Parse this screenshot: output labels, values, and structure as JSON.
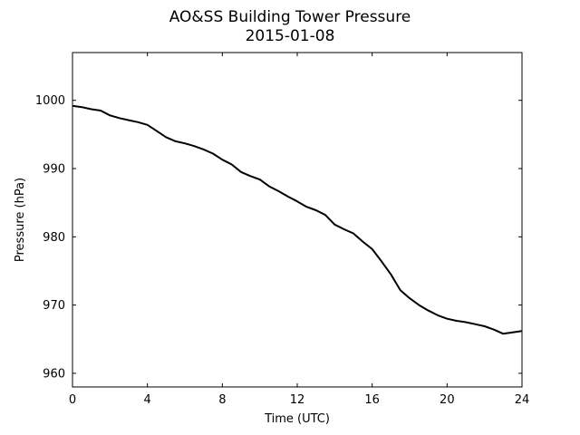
{
  "chart_data": {
    "type": "line",
    "title": "AO&SS Building Tower Pressure",
    "subtitle": "2015-01-08",
    "xlabel": "Time (UTC)",
    "ylabel": "Pressure (hPa)",
    "xlim": [
      0,
      24
    ],
    "ylim": [
      958,
      1007
    ],
    "xticks": [
      0,
      4,
      8,
      12,
      16,
      20,
      24
    ],
    "yticks": [
      960,
      970,
      980,
      990,
      1000
    ],
    "grid": false,
    "series": [
      {
        "color": "#000000",
        "x": [
          0,
          0.5,
          1,
          1.5,
          2,
          2.5,
          3,
          3.5,
          4,
          4.5,
          5,
          5.5,
          6,
          6.5,
          7,
          7.5,
          8,
          8.5,
          9,
          9.5,
          10,
          10.5,
          11,
          11.5,
          12,
          12.5,
          13,
          13.5,
          14,
          14.5,
          15,
          15.5,
          16,
          16.5,
          17,
          17.5,
          18,
          18.5,
          19,
          19.5,
          20,
          20.5,
          21,
          21.5,
          22,
          22.5,
          23,
          23.5,
          24
        ],
        "y": [
          999.2,
          999.0,
          998.7,
          998.5,
          997.8,
          997.4,
          997.1,
          996.8,
          996.4,
          995.5,
          994.6,
          994.0,
          993.7,
          993.3,
          992.8,
          992.2,
          991.3,
          990.6,
          989.5,
          988.9,
          988.4,
          987.4,
          986.7,
          985.9,
          985.2,
          984.4,
          983.9,
          983.2,
          981.8,
          981.1,
          980.5,
          979.3,
          978.2,
          976.4,
          974.5,
          972.2,
          971.0,
          970.0,
          969.2,
          968.5,
          968.0,
          967.7,
          967.5,
          967.2,
          966.9,
          966.4,
          965.8,
          966.0,
          966.2
        ]
      }
    ]
  }
}
